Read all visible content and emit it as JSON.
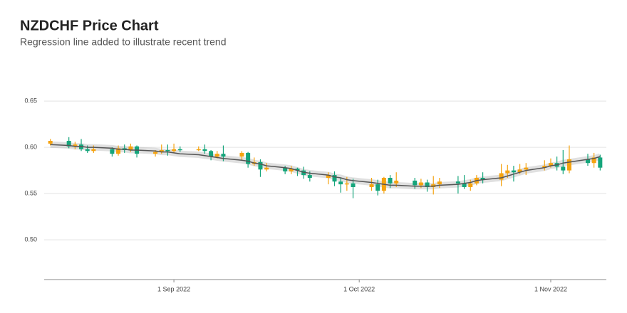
{
  "chart_data": {
    "type": "candlestick",
    "title": "NZDCHF Price Chart",
    "subtitle": "Regression line added to illustrate recent trend",
    "up_color": "#f5a30f",
    "down_color": "#15a57b",
    "regression_color": "#555555",
    "x": [
      "2022-08-12",
      "2022-08-15",
      "2022-08-16",
      "2022-08-17",
      "2022-08-18",
      "2022-08-19",
      "2022-08-22",
      "2022-08-23",
      "2022-08-24",
      "2022-08-25",
      "2022-08-26",
      "2022-08-29",
      "2022-08-30",
      "2022-08-31",
      "2022-09-01",
      "2022-09-02",
      "2022-09-05",
      "2022-09-06",
      "2022-09-07",
      "2022-09-08",
      "2022-09-09",
      "2022-09-12",
      "2022-09-13",
      "2022-09-14",
      "2022-09-15",
      "2022-09-16",
      "2022-09-19",
      "2022-09-20",
      "2022-09-21",
      "2022-09-22",
      "2022-09-23",
      "2022-09-26",
      "2022-09-27",
      "2022-09-28",
      "2022-09-29",
      "2022-09-30",
      "2022-10-03",
      "2022-10-04",
      "2022-10-05",
      "2022-10-06",
      "2022-10-07",
      "2022-10-10",
      "2022-10-11",
      "2022-10-12",
      "2022-10-13",
      "2022-10-14",
      "2022-10-17",
      "2022-10-18",
      "2022-10-19",
      "2022-10-20",
      "2022-10-21",
      "2022-10-24",
      "2022-10-25",
      "2022-10-26",
      "2022-10-27",
      "2022-10-28",
      "2022-10-31",
      "2022-11-01",
      "2022-11-02",
      "2022-11-03",
      "2022-11-04",
      "2022-11-07",
      "2022-11-08",
      "2022-11-09"
    ],
    "open": [
      0.604,
      0.607,
      0.601,
      0.603,
      0.598,
      0.596,
      0.598,
      0.593,
      0.599,
      0.597,
      0.601,
      0.593,
      0.595,
      0.597,
      0.596,
      0.598,
      0.597,
      0.598,
      0.596,
      0.59,
      0.593,
      0.59,
      0.594,
      0.582,
      0.584,
      0.576,
      0.578,
      0.574,
      0.577,
      0.575,
      0.57,
      0.567,
      0.57,
      0.563,
      0.56,
      0.561,
      0.557,
      0.56,
      0.553,
      0.567,
      0.561,
      0.564,
      0.559,
      0.562,
      0.557,
      0.56,
      0.563,
      0.561,
      0.557,
      0.561,
      0.567,
      0.565,
      0.572,
      0.575,
      0.573,
      0.576,
      0.578,
      0.58,
      0.583,
      0.579,
      0.575,
      0.587,
      0.583,
      0.589
    ],
    "close": [
      0.607,
      0.601,
      0.603,
      0.598,
      0.596,
      0.598,
      0.593,
      0.599,
      0.597,
      0.601,
      0.593,
      0.595,
      0.597,
      0.596,
      0.598,
      0.597,
      0.598,
      0.596,
      0.59,
      0.593,
      0.59,
      0.594,
      0.582,
      0.584,
      0.576,
      0.578,
      0.574,
      0.577,
      0.575,
      0.57,
      0.567,
      0.57,
      0.563,
      0.56,
      0.561,
      0.557,
      0.56,
      0.553,
      0.567,
      0.561,
      0.564,
      0.559,
      0.562,
      0.557,
      0.56,
      0.563,
      0.561,
      0.557,
      0.561,
      0.567,
      0.565,
      0.572,
      0.575,
      0.573,
      0.576,
      0.578,
      0.58,
      0.583,
      0.579,
      0.575,
      0.587,
      0.583,
      0.589,
      0.578
    ],
    "high": [
      0.609,
      0.611,
      0.606,
      0.609,
      0.602,
      0.602,
      0.6,
      0.602,
      0.603,
      0.604,
      0.602,
      0.597,
      0.603,
      0.603,
      0.604,
      0.601,
      0.601,
      0.603,
      0.597,
      0.596,
      0.602,
      0.596,
      0.595,
      0.589,
      0.587,
      0.583,
      0.58,
      0.58,
      0.578,
      0.579,
      0.574,
      0.573,
      0.574,
      0.567,
      0.568,
      0.566,
      0.567,
      0.565,
      0.568,
      0.57,
      0.573,
      0.567,
      0.566,
      0.565,
      0.569,
      0.567,
      0.569,
      0.57,
      0.565,
      0.57,
      0.573,
      0.582,
      0.581,
      0.58,
      0.582,
      0.583,
      0.586,
      0.588,
      0.59,
      0.597,
      0.602,
      0.593,
      0.594,
      0.592
    ],
    "low": [
      0.602,
      0.599,
      0.598,
      0.596,
      0.594,
      0.594,
      0.59,
      0.591,
      0.594,
      0.595,
      0.589,
      0.59,
      0.593,
      0.591,
      0.594,
      0.595,
      0.596,
      0.593,
      0.586,
      0.588,
      0.585,
      0.586,
      0.578,
      0.58,
      0.568,
      0.574,
      0.571,
      0.571,
      0.569,
      0.566,
      0.563,
      0.56,
      0.558,
      0.551,
      0.553,
      0.545,
      0.553,
      0.548,
      0.55,
      0.556,
      0.557,
      0.555,
      0.556,
      0.552,
      0.549,
      0.556,
      0.55,
      0.555,
      0.553,
      0.559,
      0.561,
      0.558,
      0.567,
      0.563,
      0.571,
      0.57,
      0.575,
      0.578,
      0.575,
      0.571,
      0.572,
      0.58,
      0.578,
      0.575
    ],
    "regression": [
      0.603,
      0.602,
      0.601,
      0.601,
      0.6,
      0.6,
      0.599,
      0.598,
      0.598,
      0.597,
      0.597,
      0.596,
      0.595,
      0.595,
      0.594,
      0.593,
      0.592,
      0.591,
      0.59,
      0.589,
      0.588,
      0.586,
      0.585,
      0.583,
      0.582,
      0.58,
      0.578,
      0.577,
      0.575,
      0.573,
      0.572,
      0.57,
      0.568,
      0.567,
      0.565,
      0.564,
      0.562,
      0.561,
      0.56,
      0.559,
      0.559,
      0.558,
      0.558,
      0.558,
      0.558,
      0.559,
      0.56,
      0.561,
      0.562,
      0.564,
      0.565,
      0.567,
      0.569,
      0.571,
      0.573,
      0.575,
      0.578,
      0.58,
      0.581,
      0.583,
      0.584,
      0.587,
      0.588,
      0.59
    ],
    "xlim": [
      "2022-08-11",
      "2022-11-10"
    ],
    "xticks": [
      {
        "value": "2022-09-01",
        "label": "1 Sep 2022"
      },
      {
        "value": "2022-10-01",
        "label": "1 Oct 2022"
      },
      {
        "value": "2022-11-01",
        "label": "1 Nov 2022"
      }
    ],
    "ylim": [
      0.457,
      0.667
    ],
    "yticks": [
      {
        "value": 0.5,
        "label": "0.50"
      },
      0.55,
      {
        "value": 0.6,
        "label": "0.60"
      },
      0.65
    ],
    "grid": true
  }
}
